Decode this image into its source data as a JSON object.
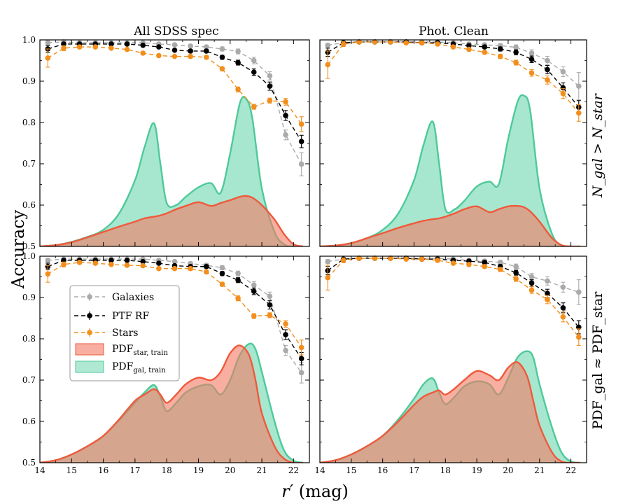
{
  "figure": {
    "x_label_main": "r′",
    "x_label_unit": " (mag)",
    "y_label": "Accuracy",
    "row_labels": [
      "N_gal > N_star",
      "PDF_gal ≈ PDF_star"
    ],
    "col_titles": [
      "All SDSS spec",
      "Phot. Clean"
    ]
  },
  "legend": {
    "placement": "left, inside bottom-left panel",
    "items": [
      {
        "label": "Galaxies",
        "kind": "line-marker",
        "color": "#aaaaaa"
      },
      {
        "label": "PTF RF",
        "kind": "line-marker",
        "color": "#000000"
      },
      {
        "label": "Stars",
        "kind": "line-marker",
        "color": "#f28e1c"
      },
      {
        "label": "PDF",
        "sub": "star, train",
        "kind": "patch",
        "color": "#f47a63"
      },
      {
        "label": "PDF",
        "sub": "gal, train",
        "kind": "patch",
        "color": "#5fd3a8"
      }
    ]
  },
  "colors": {
    "galaxies": "#aaaaaa",
    "ptf": "#000000",
    "stars": "#f28e1c",
    "pdf_star_fill": "#f47a63",
    "pdf_star_line": "#ef5a3c",
    "pdf_gal_fill": "#5fd3a8",
    "pdf_gal_line": "#4ec99a"
  },
  "chart_data": [
    {
      "type": "line",
      "panel": "top-left",
      "title": "All SDSS spec",
      "xlim": [
        14,
        22.5
      ],
      "ylim": [
        0.5,
        1.0
      ],
      "xticks": [
        14,
        15,
        16,
        17,
        18,
        19,
        20,
        21,
        22
      ],
      "yticks": [
        0.5,
        0.6,
        0.7,
        0.8,
        0.9,
        1.0
      ],
      "x": [
        14.25,
        14.75,
        15.25,
        15.75,
        16.25,
        16.75,
        17.25,
        17.75,
        18.25,
        18.75,
        19.25,
        19.75,
        20.25,
        20.75,
        21.25,
        21.75,
        22.25
      ],
      "series": [
        {
          "name": "Galaxies",
          "values": [
            0.993,
            0.995,
            0.993,
            0.993,
            0.993,
            0.993,
            0.993,
            0.99,
            0.988,
            0.985,
            0.983,
            0.978,
            0.972,
            0.95,
            0.913,
            0.77,
            0.699
          ],
          "err": [
            0.005,
            0.004,
            0.003,
            0.003,
            0.003,
            0.003,
            0.003,
            0.003,
            0.003,
            0.004,
            0.004,
            0.005,
            0.006,
            0.008,
            0.01,
            0.012,
            0.028
          ]
        },
        {
          "name": "PTF RF",
          "values": [
            0.978,
            0.99,
            0.99,
            0.99,
            0.99,
            0.99,
            0.987,
            0.983,
            0.975,
            0.973,
            0.973,
            0.958,
            0.945,
            0.922,
            0.888,
            0.817,
            0.754
          ],
          "err": [
            0.008,
            0.004,
            0.003,
            0.003,
            0.003,
            0.003,
            0.003,
            0.003,
            0.003,
            0.004,
            0.004,
            0.005,
            0.006,
            0.008,
            0.01,
            0.012,
            0.015
          ]
        },
        {
          "name": "Stars",
          "values": [
            0.956,
            0.98,
            0.983,
            0.983,
            0.98,
            0.977,
            0.968,
            0.962,
            0.96,
            0.96,
            0.958,
            0.93,
            0.88,
            0.838,
            0.853,
            0.85,
            0.796
          ],
          "err": [
            0.022,
            0.006,
            0.004,
            0.003,
            0.003,
            0.003,
            0.003,
            0.003,
            0.003,
            0.004,
            0.004,
            0.005,
            0.006,
            0.006,
            0.006,
            0.008,
            0.018
          ]
        }
      ],
      "pdf": {
        "x": [
          14,
          14.5,
          15,
          15.5,
          16,
          16.5,
          17,
          17.3,
          17.6,
          17.8,
          18,
          18.3,
          18.6,
          19,
          19.4,
          19.7,
          20,
          20.3,
          20.5,
          20.7,
          21,
          21.4,
          21.7,
          22,
          22.3
        ],
        "gal": [
          0.5,
          0.503,
          0.511,
          0.523,
          0.54,
          0.58,
          0.66,
          0.74,
          0.798,
          0.7,
          0.605,
          0.6,
          0.62,
          0.643,
          0.653,
          0.63,
          0.725,
          0.845,
          0.858,
          0.81,
          0.64,
          0.535,
          0.505,
          0.5,
          0.5
        ],
        "star": [
          0.5,
          0.503,
          0.51,
          0.522,
          0.535,
          0.548,
          0.56,
          0.568,
          0.572,
          0.575,
          0.58,
          0.59,
          0.598,
          0.607,
          0.598,
          0.605,
          0.612,
          0.62,
          0.622,
          0.618,
          0.6,
          0.565,
          0.53,
          0.505,
          0.5
        ]
      }
    },
    {
      "type": "line",
      "panel": "top-right",
      "title": "Phot. Clean",
      "xlim": [
        14,
        22.5
      ],
      "ylim": [
        0.5,
        1.0
      ],
      "xticks": [
        14,
        15,
        16,
        17,
        18,
        19,
        20,
        21,
        22
      ],
      "yticks": [
        0.5,
        0.6,
        0.7,
        0.8,
        0.9,
        1.0
      ],
      "x": [
        14.25,
        14.75,
        15.25,
        15.75,
        16.25,
        16.75,
        17.25,
        17.75,
        18.25,
        18.75,
        19.25,
        19.75,
        20.25,
        20.75,
        21.25,
        21.75,
        22.25
      ],
      "series": [
        {
          "name": "Galaxies",
          "values": [
            0.987,
            0.993,
            0.995,
            0.995,
            0.995,
            0.995,
            0.995,
            0.995,
            0.993,
            0.99,
            0.988,
            0.986,
            0.982,
            0.968,
            0.95,
            0.923,
            0.888
          ],
          "err": [
            0.005,
            0.004,
            0.003,
            0.003,
            0.003,
            0.003,
            0.003,
            0.003,
            0.003,
            0.004,
            0.004,
            0.005,
            0.006,
            0.008,
            0.01,
            0.012,
            0.033
          ]
        },
        {
          "name": "PTF RF",
          "values": [
            0.97,
            0.993,
            0.995,
            0.995,
            0.995,
            0.995,
            0.993,
            0.993,
            0.99,
            0.986,
            0.983,
            0.978,
            0.97,
            0.953,
            0.928,
            0.884,
            0.837
          ],
          "err": [
            0.01,
            0.004,
            0.003,
            0.003,
            0.003,
            0.003,
            0.003,
            0.003,
            0.003,
            0.004,
            0.004,
            0.005,
            0.006,
            0.008,
            0.01,
            0.012,
            0.016
          ]
        },
        {
          "name": "Stars",
          "values": [
            0.94,
            0.99,
            0.995,
            0.995,
            0.995,
            0.993,
            0.993,
            0.99,
            0.983,
            0.977,
            0.97,
            0.96,
            0.945,
            0.92,
            0.903,
            0.87,
            0.823
          ],
          "err": [
            0.033,
            0.006,
            0.004,
            0.003,
            0.003,
            0.003,
            0.003,
            0.003,
            0.003,
            0.004,
            0.004,
            0.005,
            0.006,
            0.008,
            0.01,
            0.012,
            0.02
          ]
        }
      ],
      "pdf": {
        "x": [
          14,
          14.5,
          15,
          15.5,
          16,
          16.5,
          17,
          17.3,
          17.6,
          17.8,
          18,
          18.3,
          18.6,
          19,
          19.4,
          19.7,
          20,
          20.3,
          20.5,
          20.7,
          21,
          21.4,
          21.7,
          22,
          22.3
        ],
        "gal": [
          0.5,
          0.502,
          0.508,
          0.52,
          0.54,
          0.58,
          0.66,
          0.745,
          0.802,
          0.7,
          0.59,
          0.59,
          0.61,
          0.645,
          0.657,
          0.65,
          0.76,
          0.85,
          0.865,
          0.83,
          0.64,
          0.53,
          0.503,
          0.5,
          0.5
        ],
        "star": [
          0.5,
          0.502,
          0.508,
          0.52,
          0.532,
          0.545,
          0.556,
          0.562,
          0.566,
          0.568,
          0.572,
          0.58,
          0.59,
          0.597,
          0.583,
          0.59,
          0.597,
          0.598,
          0.595,
          0.585,
          0.56,
          0.52,
          0.503,
          0.5,
          0.5
        ]
      }
    },
    {
      "type": "line",
      "panel": "bottom-left",
      "title": "",
      "xlim": [
        14,
        22.5
      ],
      "ylim": [
        0.5,
        1.0
      ],
      "xticks": [
        14,
        15,
        16,
        17,
        18,
        19,
        20,
        21,
        22
      ],
      "yticks": [
        0.5,
        0.6,
        0.7,
        0.8,
        0.9,
        1.0
      ],
      "x": [
        14.25,
        14.75,
        15.25,
        15.75,
        16.25,
        16.75,
        17.25,
        17.75,
        18.25,
        18.75,
        19.25,
        19.75,
        20.25,
        20.75,
        21.25,
        21.75,
        22.25
      ],
      "series": [
        {
          "name": "Galaxies",
          "values": [
            0.99,
            0.993,
            0.993,
            0.993,
            0.993,
            0.993,
            0.993,
            0.99,
            0.987,
            0.982,
            0.978,
            0.972,
            0.958,
            0.93,
            0.903,
            0.772,
            0.718
          ],
          "err": [
            0.005,
            0.004,
            0.003,
            0.003,
            0.003,
            0.003,
            0.003,
            0.003,
            0.003,
            0.004,
            0.004,
            0.005,
            0.006,
            0.008,
            0.01,
            0.012,
            0.025
          ]
        },
        {
          "name": "PTF RF",
          "values": [
            0.975,
            0.99,
            0.99,
            0.99,
            0.99,
            0.99,
            0.987,
            0.983,
            0.977,
            0.975,
            0.975,
            0.958,
            0.942,
            0.915,
            0.882,
            0.81,
            0.752
          ],
          "err": [
            0.008,
            0.004,
            0.003,
            0.003,
            0.003,
            0.003,
            0.003,
            0.003,
            0.003,
            0.004,
            0.004,
            0.005,
            0.006,
            0.008,
            0.01,
            0.012,
            0.015
          ]
        },
        {
          "name": "Stars",
          "values": [
            0.957,
            0.98,
            0.985,
            0.983,
            0.98,
            0.978,
            0.977,
            0.97,
            0.97,
            0.97,
            0.962,
            0.932,
            0.898,
            0.855,
            0.857,
            0.836,
            0.779
          ],
          "err": [
            0.02,
            0.006,
            0.004,
            0.003,
            0.003,
            0.003,
            0.003,
            0.003,
            0.003,
            0.004,
            0.004,
            0.005,
            0.006,
            0.006,
            0.006,
            0.008,
            0.018
          ]
        }
      ],
      "pdf": {
        "x": [
          14,
          14.5,
          15,
          15.5,
          16,
          16.5,
          17,
          17.3,
          17.6,
          17.8,
          18,
          18.3,
          18.6,
          19,
          19.4,
          19.7,
          20,
          20.3,
          20.6,
          20.8,
          21,
          21.4,
          21.7,
          22,
          22.3
        ],
        "gal": [
          0.5,
          0.506,
          0.52,
          0.54,
          0.565,
          0.603,
          0.645,
          0.67,
          0.688,
          0.66,
          0.625,
          0.645,
          0.67,
          0.685,
          0.688,
          0.665,
          0.7,
          0.76,
          0.788,
          0.775,
          0.72,
          0.6,
          0.53,
          0.505,
          0.5
        ],
        "star": [
          0.5,
          0.506,
          0.52,
          0.54,
          0.565,
          0.605,
          0.65,
          0.665,
          0.678,
          0.665,
          0.645,
          0.665,
          0.69,
          0.706,
          0.7,
          0.72,
          0.765,
          0.784,
          0.76,
          0.7,
          0.62,
          0.54,
          0.51,
          0.5,
          0.5
        ]
      }
    },
    {
      "type": "line",
      "panel": "bottom-right",
      "title": "",
      "xlim": [
        14,
        22.5
      ],
      "ylim": [
        0.5,
        1.0
      ],
      "xticks": [
        14,
        15,
        16,
        17,
        18,
        19,
        20,
        21,
        22
      ],
      "yticks": [
        0.5,
        0.6,
        0.7,
        0.8,
        0.9,
        1.0
      ],
      "x": [
        14.25,
        14.75,
        15.25,
        15.75,
        16.25,
        16.75,
        17.25,
        17.75,
        18.25,
        18.75,
        19.25,
        19.75,
        20.25,
        20.75,
        21.25,
        21.75,
        22.25
      ],
      "series": [
        {
          "name": "Galaxies",
          "values": [
            0.987,
            0.993,
            0.995,
            0.995,
            0.995,
            0.995,
            0.995,
            0.995,
            0.993,
            0.99,
            0.988,
            0.985,
            0.975,
            0.95,
            0.94,
            0.925,
            0.913
          ],
          "err": [
            0.005,
            0.004,
            0.003,
            0.003,
            0.003,
            0.003,
            0.003,
            0.003,
            0.003,
            0.004,
            0.004,
            0.005,
            0.006,
            0.008,
            0.01,
            0.012,
            0.03
          ]
        },
        {
          "name": "PTF RF",
          "values": [
            0.965,
            0.993,
            0.995,
            0.995,
            0.995,
            0.995,
            0.993,
            0.993,
            0.99,
            0.988,
            0.985,
            0.975,
            0.96,
            0.935,
            0.91,
            0.875,
            0.828
          ],
          "err": [
            0.01,
            0.004,
            0.003,
            0.003,
            0.003,
            0.003,
            0.003,
            0.003,
            0.003,
            0.004,
            0.004,
            0.005,
            0.006,
            0.008,
            0.01,
            0.012,
            0.016
          ]
        },
        {
          "name": "Stars",
          "values": [
            0.948,
            0.99,
            0.995,
            0.995,
            0.995,
            0.993,
            0.993,
            0.99,
            0.983,
            0.98,
            0.975,
            0.968,
            0.945,
            0.918,
            0.895,
            0.853,
            0.804
          ],
          "err": [
            0.03,
            0.006,
            0.004,
            0.003,
            0.003,
            0.003,
            0.003,
            0.003,
            0.003,
            0.004,
            0.004,
            0.005,
            0.006,
            0.008,
            0.01,
            0.012,
            0.02
          ]
        }
      ],
      "pdf": {
        "x": [
          14,
          14.5,
          15,
          15.5,
          16,
          16.5,
          17,
          17.3,
          17.6,
          17.8,
          18,
          18.3,
          18.6,
          19,
          19.4,
          19.7,
          20,
          20.3,
          20.6,
          20.8,
          21,
          21.4,
          21.7,
          22,
          22.3
        ],
        "gal": [
          0.5,
          0.506,
          0.52,
          0.54,
          0.565,
          0.605,
          0.655,
          0.69,
          0.704,
          0.67,
          0.642,
          0.66,
          0.685,
          0.697,
          0.69,
          0.665,
          0.705,
          0.755,
          0.77,
          0.755,
          0.69,
          0.585,
          0.525,
          0.503,
          0.5
        ],
        "star": [
          0.5,
          0.506,
          0.52,
          0.54,
          0.565,
          0.6,
          0.64,
          0.66,
          0.67,
          0.675,
          0.665,
          0.68,
          0.7,
          0.722,
          0.712,
          0.7,
          0.73,
          0.743,
          0.71,
          0.65,
          0.59,
          0.525,
          0.503,
          0.5,
          0.5
        ]
      }
    }
  ]
}
